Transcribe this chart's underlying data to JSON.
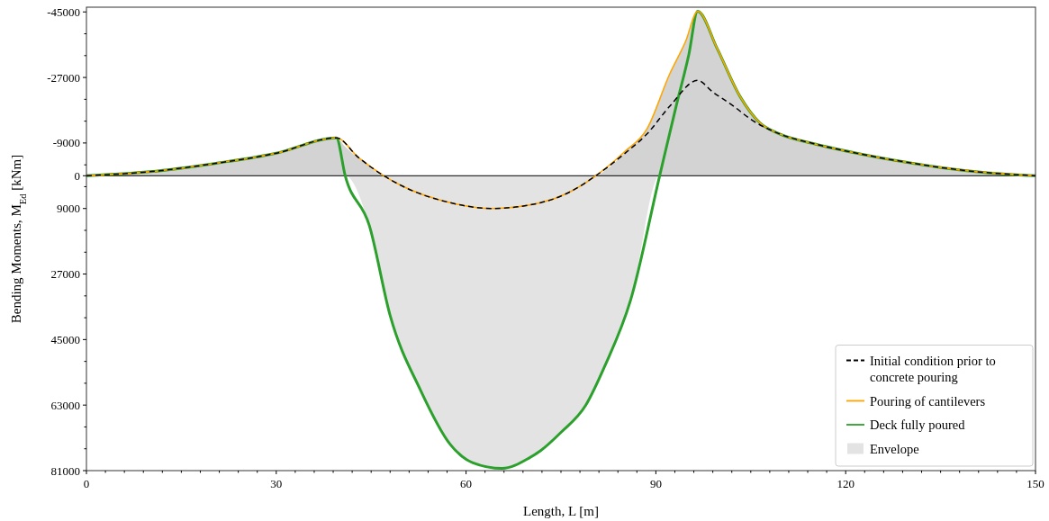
{
  "chart_data": {
    "type": "line",
    "xlabel": "Length, L [m]",
    "ylabel": "Bending Moments, M$_{Ed}$ [kNm]",
    "xlim": [
      0,
      150
    ],
    "ylim": [
      81000,
      -46300
    ],
    "xticks": [
      0,
      {
        "value": 3,
        "label": null
      },
      {
        "value": 6,
        "label": null
      },
      {
        "value": 9,
        "label": null
      },
      {
        "value": 12,
        "label": null
      },
      {
        "value": 15,
        "label": null
      },
      {
        "value": 18,
        "label": null
      },
      {
        "value": 21,
        "label": null
      },
      {
        "value": 24,
        "label": null
      },
      {
        "value": 27,
        "label": null
      },
      30,
      {
        "value": 33,
        "label": null
      },
      {
        "value": 36,
        "label": null
      },
      {
        "value": 39,
        "label": null
      },
      {
        "value": 42,
        "label": null
      },
      {
        "value": 45,
        "label": null
      },
      {
        "value": 48,
        "label": null
      },
      {
        "value": 51,
        "label": null
      },
      {
        "value": 54,
        "label": null
      },
      {
        "value": 57,
        "label": null
      },
      60,
      {
        "value": 63,
        "label": null
      },
      {
        "value": 66,
        "label": null
      },
      {
        "value": 69,
        "label": null
      },
      {
        "value": 72,
        "label": null
      },
      {
        "value": 75,
        "label": null
      },
      {
        "value": 78,
        "label": null
      },
      {
        "value": 81,
        "label": null
      },
      {
        "value": 84,
        "label": null
      },
      {
        "value": 87,
        "label": null
      },
      90,
      {
        "value": 93,
        "label": null
      },
      {
        "value": 96,
        "label": null
      },
      {
        "value": 99,
        "label": null
      },
      {
        "value": 102,
        "label": null
      },
      {
        "value": 105,
        "label": null
      },
      {
        "value": 108,
        "label": null
      },
      {
        "value": 111,
        "label": null
      },
      {
        "value": 114,
        "label": null
      },
      {
        "value": 117,
        "label": null
      },
      120,
      {
        "value": 123,
        "label": null
      },
      {
        "value": 126,
        "label": null
      },
      {
        "value": 129,
        "label": null
      },
      {
        "value": 132,
        "label": null
      },
      {
        "value": 135,
        "label": null
      },
      {
        "value": 138,
        "label": null
      },
      {
        "value": 141,
        "label": null
      },
      {
        "value": 144,
        "label": null
      },
      {
        "value": 147,
        "label": null
      },
      150
    ],
    "yticks": [
      -45000,
      {
        "value": -39000,
        "label": null
      },
      {
        "value": -33000,
        "label": null
      },
      -27000,
      {
        "value": -21000,
        "label": null
      },
      {
        "value": -15000,
        "label": null
      },
      -9000,
      {
        "value": -3000,
        "label": null
      },
      0,
      {
        "value": 3000,
        "label": null
      },
      9000,
      {
        "value": 15000,
        "label": null
      },
      {
        "value": 21000,
        "label": null
      },
      27000,
      {
        "value": 33000,
        "label": null
      },
      {
        "value": 39000,
        "label": null
      },
      45000,
      {
        "value": 51000,
        "label": null
      },
      {
        "value": 57000,
        "label": null
      },
      63000,
      {
        "value": 69000,
        "label": null
      },
      {
        "value": 75000,
        "label": null
      },
      81000
    ],
    "grid": false,
    "legend": "bottom right",
    "ref_lines": [
      {
        "axis": "y",
        "value": 0,
        "color": "#000000"
      }
    ],
    "series": [
      {
        "name": "Envelope",
        "type": "area",
        "color": "#e3e3e3",
        "x": [
          0,
          10,
          20,
          30,
          39.5,
          40.9,
          44.7,
          48,
          52.8,
          57.5,
          61,
          65.7,
          70,
          71.8,
          75,
          78.9,
          82,
          86,
          90.6,
          93.2,
          95.2,
          96.6,
          99.7,
          103.3,
          106.4,
          109.4,
          115,
          122.6,
          130,
          135.3,
          142,
          150
        ],
        "values": [
          0,
          0,
          0,
          0,
          0,
          0,
          13600,
          38400,
          58900,
          73800,
          78800,
          80400,
          77500,
          75500,
          70500,
          63100,
          52000,
          34200,
          0,
          0,
          0,
          0,
          0,
          0,
          0,
          0,
          0,
          0,
          0,
          0,
          0,
          0
        ]
      },
      {
        "type": "area",
        "color": "#d3d3d3",
        "x": [
          0,
          10,
          20,
          30,
          39.5,
          40.9,
          44.7,
          47,
          80.5,
          82,
          86,
          88.6,
          90.6,
          93.2,
          95.2,
          96.6,
          99.7,
          103.3,
          106.4,
          109.4,
          115,
          122.6,
          130,
          135.3,
          142,
          150
        ],
        "values": [
          0,
          -1100,
          -3300,
          -6200,
          -10400,
          -8000,
          -2500,
          0,
          0,
          -1500,
          -8000,
          -12900,
          -21300,
          -31500,
          -39000,
          -45200,
          -34900,
          -21800,
          -14600,
          -11600,
          -8800,
          -5900,
          -3600,
          -2200,
          -900,
          0
        ]
      },
      {
        "name": "Deck fully poured",
        "color": "#2ca02c",
        "line_style": "solid",
        "x": [
          0,
          10,
          20,
          30,
          39.5,
          40.9,
          44.7,
          48,
          52.8,
          57.5,
          61,
          65.7,
          70,
          71.8,
          75,
          78.9,
          82,
          86,
          90.6,
          93.2,
          95.2,
          96.6,
          99.7,
          103.3,
          106.4,
          109.4,
          115,
          122.6,
          130,
          135.3,
          142,
          150
        ],
        "values": [
          0,
          -1100,
          -3300,
          -6200,
          -10400,
          0,
          13600,
          38400,
          58900,
          73800,
          78800,
          80400,
          77500,
          75500,
          70500,
          63100,
          52000,
          34200,
          0,
          -19100,
          -33200,
          -45200,
          -34900,
          -21800,
          -14600,
          -11600,
          -8800,
          -5900,
          -3600,
          -2200,
          -900,
          0
        ]
      },
      {
        "name": "Pouring of cantilevers",
        "color": "#ffa500",
        "line_style": "solid",
        "x": [
          0,
          10,
          20,
          30,
          39.5,
          43,
          47,
          50,
          57.5,
          64,
          71.8,
          76,
          80.5,
          85,
          88.6,
          92.2,
          94.7,
          96.6,
          99.7,
          103.3,
          106.4,
          109.4,
          115,
          122.6,
          130,
          135.3,
          142,
          150
        ],
        "values": [
          0,
          -1100,
          -3300,
          -6200,
          -10400,
          -5000,
          0,
          2900,
          7400,
          9000,
          7400,
          4800,
          0,
          -6500,
          -12900,
          -28000,
          -36900,
          -45200,
          -34900,
          -21800,
          -14600,
          -11600,
          -8800,
          -5900,
          -3600,
          -2200,
          -900,
          0
        ]
      },
      {
        "name": "Initial condition prior to concrete pouring",
        "color": "#000000",
        "line_style": "dashed",
        "x": [
          0,
          10,
          20,
          30,
          39.5,
          43,
          47,
          50,
          57.5,
          64,
          71.8,
          76,
          80.5,
          85,
          88.6,
          92.2,
          96.6,
          99,
          102.3,
          105,
          109.4,
          115,
          122.6,
          130,
          135.3,
          142,
          150
        ],
        "values": [
          0,
          -1100,
          -3300,
          -6200,
          -10400,
          -5000,
          0,
          2900,
          7400,
          9000,
          7400,
          4800,
          0,
          -6000,
          -11500,
          -19100,
          -26200,
          -23000,
          -19100,
          -15500,
          -11600,
          -8800,
          -5900,
          -3600,
          -2200,
          -900,
          0
        ]
      }
    ]
  }
}
